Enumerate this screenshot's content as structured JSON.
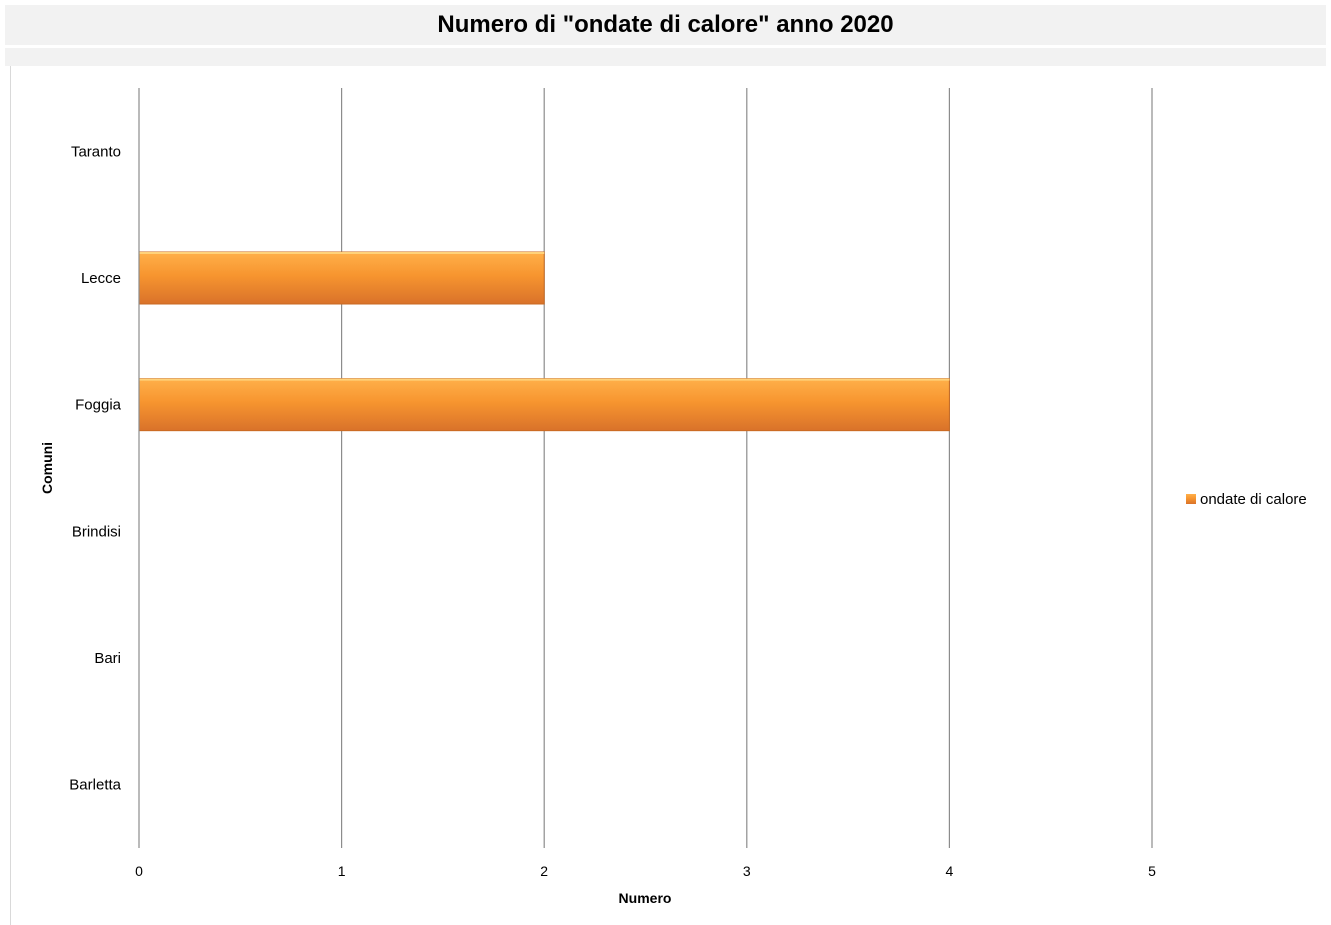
{
  "chart_data": {
    "type": "bar",
    "orientation": "horizontal",
    "title": "Numero di \"ondate di calore\" anno 2020",
    "xlabel": "Numero",
    "ylabel": "Comuni",
    "categories": [
      "Taranto",
      "Lecce",
      "Foggia",
      "Brindisi",
      "Bari",
      "Barletta"
    ],
    "series": [
      {
        "name": "ondate di calore",
        "values": [
          0,
          2,
          4,
          0,
          0,
          0
        ],
        "color": "#f59a3a"
      }
    ],
    "xlim": [
      0,
      5
    ],
    "xticks": [
      "0",
      "1",
      "2",
      "3",
      "4",
      "5"
    ],
    "grid": true,
    "legend_position": "right"
  }
}
